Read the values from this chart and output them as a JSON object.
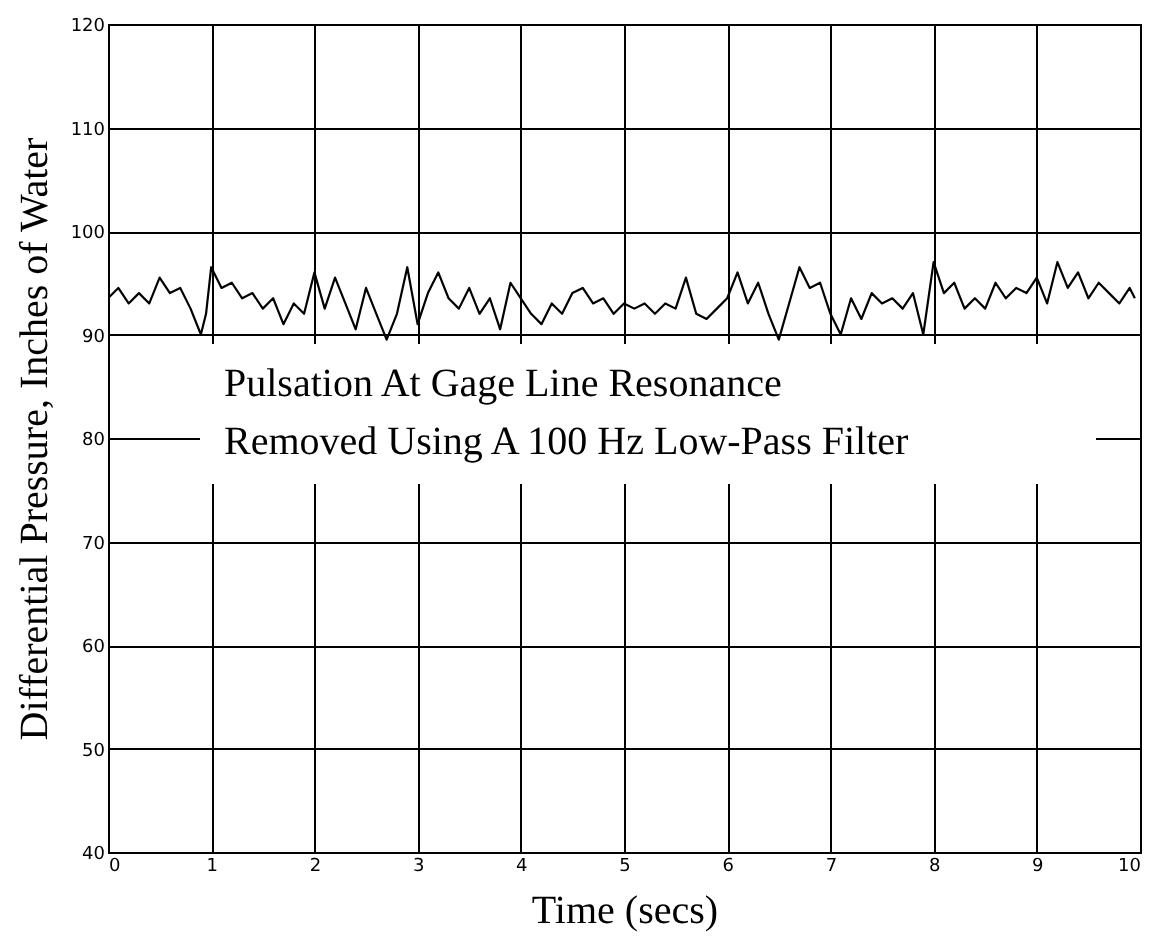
{
  "chart_data": {
    "type": "line",
    "xlabel": "Time (secs)",
    "ylabel": "Differential Pressure, Inches of Water",
    "annotations": [
      "Pulsation At Gage Line Resonance\nRemoved Using A 100 Hz Low-Pass Filter"
    ],
    "x": [
      0,
      0.1,
      0.2,
      0.3,
      0.4,
      0.5,
      0.6,
      0.7,
      0.8,
      0.9,
      0.95,
      1.0,
      1.1,
      1.2,
      1.3,
      1.4,
      1.5,
      1.6,
      1.7,
      1.8,
      1.9,
      2.0,
      2.1,
      2.2,
      2.3,
      2.4,
      2.5,
      2.6,
      2.7,
      2.8,
      2.9,
      3.0,
      3.1,
      3.2,
      3.3,
      3.4,
      3.5,
      3.6,
      3.7,
      3.8,
      3.9,
      4.0,
      4.1,
      4.2,
      4.3,
      4.4,
      4.5,
      4.6,
      4.7,
      4.8,
      4.9,
      5.0,
      5.1,
      5.2,
      5.3,
      5.4,
      5.5,
      5.6,
      5.7,
      5.8,
      5.9,
      6.0,
      6.1,
      6.2,
      6.3,
      6.4,
      6.5,
      6.6,
      6.7,
      6.8,
      6.9,
      7.0,
      7.1,
      7.2,
      7.3,
      7.4,
      7.5,
      7.6,
      7.7,
      7.8,
      7.9,
      8.0,
      8.1,
      8.2,
      8.3,
      8.4,
      8.5,
      8.6,
      8.7,
      8.8,
      8.9,
      9.0,
      9.1,
      9.2,
      9.3,
      9.4,
      9.5,
      9.6,
      9.7,
      9.8,
      9.9,
      9.95
    ],
    "series": [
      {
        "color": "#000000",
        "values": [
          93.5,
          94.5,
          93,
          94,
          93,
          95.5,
          94,
          94.5,
          92.5,
          90,
          92,
          96.5,
          94.5,
          95,
          93.5,
          94,
          92.5,
          93.5,
          91,
          93,
          92,
          96,
          92.5,
          95.5,
          93,
          90.5,
          94.5,
          92,
          89.5,
          92,
          96.5,
          91,
          94,
          96,
          93.5,
          92.5,
          94.5,
          92,
          93.5,
          90.5,
          95,
          93.5,
          92,
          91,
          93,
          92,
          94,
          94.5,
          93,
          93.5,
          92,
          93,
          92.5,
          93,
          92,
          93,
          92.5,
          95.5,
          92,
          91.5,
          92.5,
          93.5,
          96,
          93,
          95,
          92,
          89.5,
          93,
          96.5,
          94.5,
          95,
          92,
          90,
          93.5,
          91.5,
          94,
          93,
          93.5,
          92.5,
          94,
          90,
          97,
          94,
          95,
          92.5,
          93.5,
          92.5,
          95,
          93.5,
          94.5,
          94,
          95.5,
          93,
          97,
          94.5,
          96,
          93.5,
          95,
          94,
          93,
          94.5,
          93.5
        ]
      }
    ],
    "xlim": [
      0,
      10
    ],
    "xticks": [
      0,
      1,
      2,
      3,
      4,
      5,
      6,
      7,
      8,
      9,
      10
    ],
    "ylim": [
      40,
      120
    ],
    "yticks": [
      40,
      50,
      60,
      70,
      80,
      90,
      100,
      110,
      120
    ],
    "grid": true,
    "line_style": "solid",
    "marker": "none"
  }
}
